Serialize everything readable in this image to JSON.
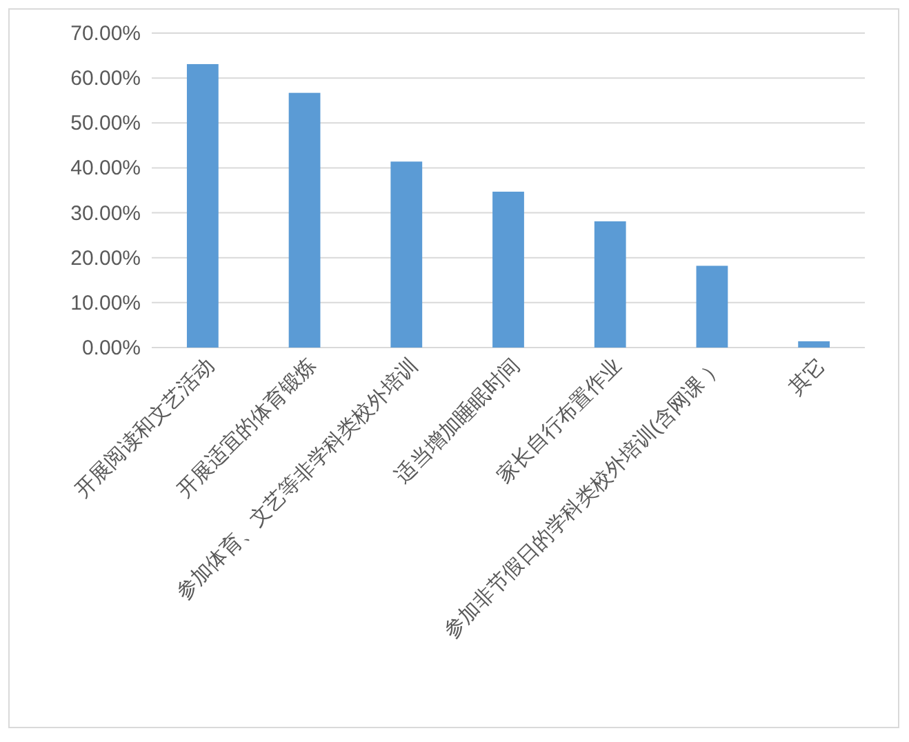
{
  "chart_data": {
    "type": "bar",
    "categories": [
      "开展阅读和文艺活动",
      "开展适宜的体育锻炼",
      "参加体育、文艺等非学科类校外培训",
      "适当增加睡眠时间",
      "家长自行布置作业",
      "参加非节假日的学科类校外培训(含网课 ）",
      "其它"
    ],
    "values": [
      63.1,
      56.7,
      41.4,
      34.7,
      28.1,
      18.2,
      1.4
    ],
    "color": "#5b9bd5",
    "ylim": [
      0,
      70
    ],
    "yticks": [
      {
        "value": 0,
        "label": "0.00%"
      },
      {
        "value": 10,
        "label": "10.00%"
      },
      {
        "value": 20,
        "label": "20.00%"
      },
      {
        "value": 30,
        "label": "30.00%"
      },
      {
        "value": 40,
        "label": "40.00%"
      },
      {
        "value": 50,
        "label": "50.00%"
      },
      {
        "value": 60,
        "label": "60.00%"
      },
      {
        "value": 70,
        "label": "70.00%"
      }
    ],
    "grid": "y"
  }
}
